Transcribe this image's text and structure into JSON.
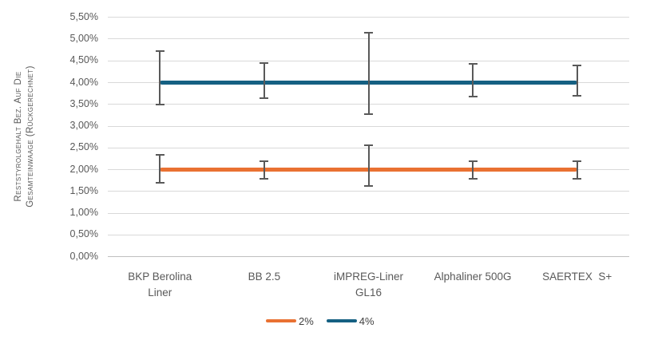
{
  "chart_data": {
    "type": "line",
    "title": "",
    "ylabel": "Reststyrolgehalt Bez. Auf Die Gesamteinwaage (Rückgerechnet)",
    "ylabel_lines": [
      "Reststyrolgehalt Bez. Auf Die",
      "Gesamteinwaage (Rückgerechnet)"
    ],
    "xlabel": "",
    "ylim": [
      0,
      5.5
    ],
    "y_tick_step": 0.5,
    "y_tick_labels": [
      "0,00%",
      "0,50%",
      "1,00%",
      "1,50%",
      "2,00%",
      "2,50%",
      "3,00%",
      "3,50%",
      "4,00%",
      "4,50%",
      "5,00%",
      "5,50%"
    ],
    "grid": true,
    "legend_position": "bottom",
    "categories": [
      "BKP Berolina Liner",
      "BB 2.5",
      "iMPREG-Liner GL16",
      "Alphaliner 500G",
      "SAERTEX  S+"
    ],
    "category_label_lines": [
      [
        "BKP Berolina",
        "Liner"
      ],
      [
        "BB 2.5"
      ],
      [
        "iMPREG-Liner",
        "GL16"
      ],
      [
        "Alphaliner 500G"
      ],
      [
        "SAERTEX  S+"
      ]
    ],
    "series": [
      {
        "name": "2%",
        "color": "#E97132",
        "values": [
          2.0,
          2.0,
          2.0,
          2.0,
          2.0
        ],
        "error_low": [
          1.7,
          1.8,
          1.62,
          1.8,
          1.8
        ],
        "error_high": [
          2.35,
          2.2,
          2.57,
          2.2,
          2.2
        ]
      },
      {
        "name": "4%",
        "color": "#156082",
        "values": [
          4.0,
          4.0,
          4.0,
          4.0,
          4.0
        ],
        "error_low": [
          3.5,
          3.65,
          3.27,
          3.68,
          3.69
        ],
        "error_high": [
          4.72,
          4.45,
          5.15,
          4.43,
          4.4
        ]
      }
    ],
    "colors": {
      "gridline": "#D9D9D9",
      "axis_line": "#BFBFBF",
      "error_bar": "#595959",
      "tick_text": "#595959",
      "category_text": "#595959",
      "legend_text": "#404040"
    }
  }
}
